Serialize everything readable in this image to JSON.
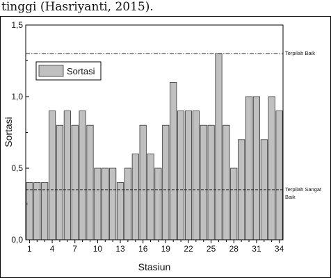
{
  "caption": "tinggi (Hasriyanti, 2015).",
  "chart_data": {
    "type": "bar",
    "xlabel": "Stasiun",
    "ylabel": "Sortasi",
    "ylim": [
      0,
      1.5
    ],
    "xlim": [
      0.5,
      34.5
    ],
    "y_ticks": [
      "0,0",
      "0,5",
      "1,0",
      "1,5"
    ],
    "y_tick_values": [
      0,
      0.5,
      1.0,
      1.5
    ],
    "x_ticks": [
      1,
      4,
      7,
      10,
      13,
      16,
      19,
      22,
      25,
      28,
      31,
      34
    ],
    "grid": false,
    "legend": {
      "label": "Sortasi",
      "placement": "top-left"
    },
    "bar_color": "#c0c0c0",
    "categories": [
      1,
      2,
      3,
      4,
      5,
      6,
      7,
      8,
      9,
      10,
      11,
      12,
      13,
      14,
      15,
      16,
      17,
      18,
      19,
      20,
      21,
      22,
      23,
      24,
      25,
      26,
      27,
      28,
      29,
      30,
      31,
      32,
      33,
      34
    ],
    "values": [
      0.4,
      0.4,
      0.4,
      0.9,
      0.8,
      0.9,
      0.8,
      0.9,
      0.8,
      0.5,
      0.5,
      0.5,
      0.4,
      0.5,
      0.6,
      0.8,
      0.6,
      0.5,
      0.8,
      1.1,
      0.9,
      0.9,
      0.9,
      0.8,
      0.8,
      1.3,
      0.8,
      0.5,
      0.7,
      1.0,
      1.0,
      0.7,
      1.0,
      0.9
    ],
    "reference_lines": [
      {
        "value": 1.3,
        "label": "Terpilah Baik",
        "style": "dash-dot"
      },
      {
        "value": 0.35,
        "label": "Terpilah Sangat",
        "label_line2": "Baik",
        "style": "dashed"
      }
    ]
  }
}
